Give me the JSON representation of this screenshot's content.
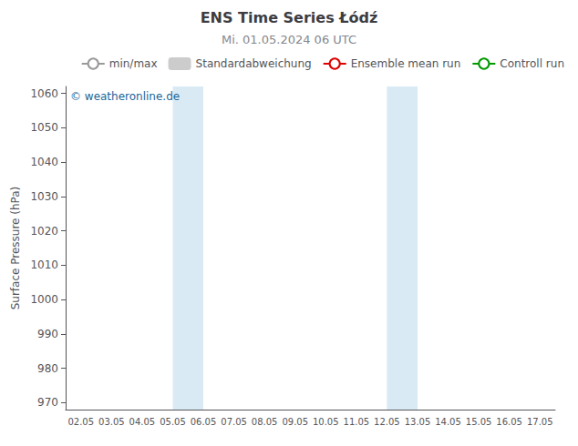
{
  "chart_data": {
    "type": "line",
    "title": "ENS Time Series Łódź",
    "subtitle": "Mi. 01.05.2024 06 UTC",
    "ylabel": "Surface Pressure (hPa)",
    "categories": [
      "02.05",
      "03.05",
      "04.05",
      "05.05",
      "06.05",
      "07.05",
      "08.05",
      "09.05",
      "10.05",
      "11.05",
      "12.05",
      "13.05",
      "14.05",
      "15.05",
      "16.05",
      "17.05"
    ],
    "series": [
      {
        "name": "min/max",
        "type": "line",
        "color": "#999999",
        "values": [
          null,
          null,
          null,
          null,
          null,
          null,
          null,
          null,
          null,
          null,
          null,
          null,
          null,
          null,
          null,
          null
        ]
      },
      {
        "name": "Standardabweichung",
        "type": "bar",
        "color": "#cccccc",
        "values": [
          null,
          null,
          null,
          null,
          null,
          null,
          null,
          null,
          null,
          null,
          null,
          null,
          null,
          null,
          null,
          null
        ]
      },
      {
        "name": "Ensemble mean run",
        "type": "line",
        "color": "#dd0000",
        "values": [
          null,
          null,
          null,
          null,
          null,
          null,
          null,
          null,
          null,
          null,
          null,
          null,
          null,
          null,
          null,
          null
        ]
      },
      {
        "name": "Controll run",
        "type": "line",
        "color": "#009900",
        "values": [
          null,
          null,
          null,
          null,
          null,
          null,
          null,
          null,
          null,
          null,
          null,
          null,
          null,
          null,
          null,
          null
        ]
      }
    ],
    "ylim": [
      968,
      1062
    ],
    "yticks": [
      970,
      980,
      990,
      1000,
      1010,
      1020,
      1030,
      1040,
      1050,
      1060
    ],
    "grid": false,
    "legend": "upper right",
    "shaded_bands": [
      {
        "from": "05.05",
        "to": "06.05",
        "color": "#daeaf5"
      },
      {
        "from": "12.05",
        "to": "13.05",
        "color": "#daeaf5"
      }
    ],
    "annotations": [
      {
        "text": "© weatheronline.de",
        "color": "#1a6699"
      }
    ]
  }
}
